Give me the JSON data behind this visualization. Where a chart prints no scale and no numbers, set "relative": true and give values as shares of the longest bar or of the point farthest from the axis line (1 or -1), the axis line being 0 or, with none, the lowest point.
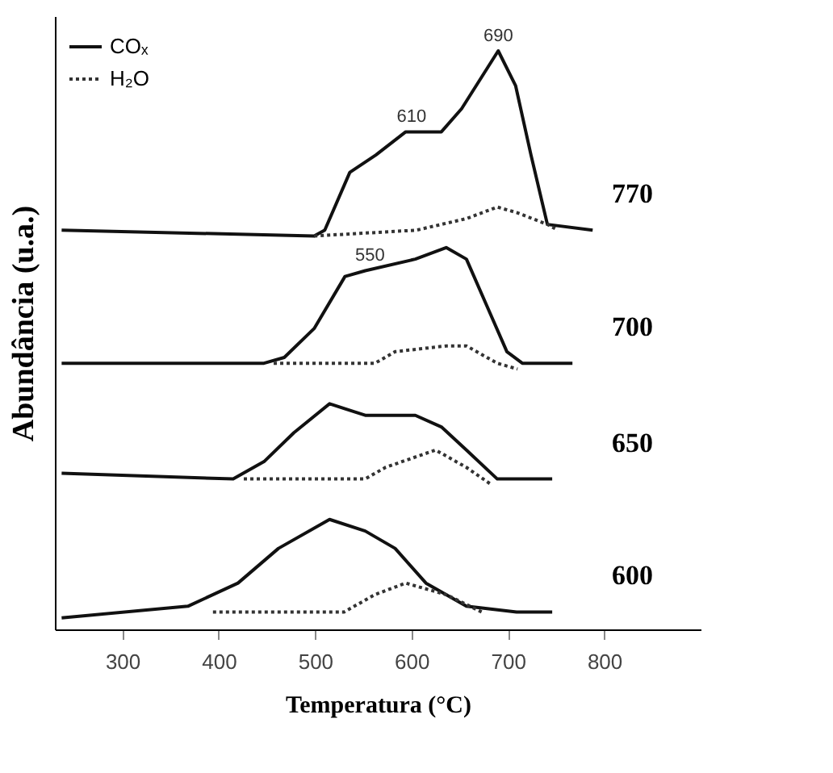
{
  "chart_data": {
    "type": "line",
    "relative": true,
    "xlim": [
      230,
      900
    ],
    "xticks": [
      300,
      400,
      500,
      600,
      700,
      800
    ],
    "tick_labels": "x",
    "legend": "top left",
    "xlabel": "Temperatura (°C)",
    "ylabel": "Abundância (u.a.)",
    "series": [
      {
        "name": "COₓ",
        "color": "#111111",
        "line_style": "solid",
        "x": [
          237,
          499,
          510,
          536,
          563,
          594,
          631,
          652,
          690,
          708,
          724,
          741,
          788
        ],
        "values": [
          0.69,
          0.68,
          0.69,
          0.79,
          0.82,
          0.86,
          0.86,
          0.9,
          1,
          0.94,
          0.82,
          0.7,
          0.69
        ]
      },
      {
        "name": "H₂O",
        "color": "#333333",
        "line_style": "dotted",
        "x": [
          499,
          605,
          657,
          689,
          710,
          741,
          752
        ],
        "values": [
          0.68,
          0.69,
          0.71,
          0.73,
          0.72,
          0.7,
          0.69
        ]
      },
      {
        "color": "#111111",
        "line_style": "solid",
        "x": [
          237,
          447,
          468,
          499,
          531,
          552,
          604,
          636,
          657,
          678,
          699,
          715,
          767
        ],
        "values": [
          0.46,
          0.46,
          0.47,
          0.52,
          0.61,
          0.62,
          0.64,
          0.66,
          0.64,
          0.56,
          0.48,
          0.46,
          0.46
        ]
      },
      {
        "color": "#333333",
        "line_style": "dotted",
        "x": [
          457,
          562,
          583,
          636,
          657,
          689,
          710
        ],
        "values": [
          0.46,
          0.46,
          0.48,
          0.49,
          0.49,
          0.46,
          0.45
        ]
      },
      {
        "color": "#111111",
        "line_style": "solid",
        "x": [
          237,
          415,
          447,
          478,
          515,
          552,
          604,
          631,
          657,
          689,
          746
        ],
        "values": [
          0.27,
          0.26,
          0.29,
          0.34,
          0.39,
          0.37,
          0.37,
          0.35,
          0.31,
          0.26,
          0.26
        ]
      },
      {
        "color": "#333333",
        "line_style": "dotted",
        "x": [
          426,
          552,
          573,
          625,
          657,
          683
        ],
        "values": [
          0.26,
          0.26,
          0.28,
          0.31,
          0.28,
          0.25
        ]
      },
      {
        "color": "#111111",
        "line_style": "solid",
        "x": [
          237,
          368,
          420,
          462,
          515,
          552,
          583,
          615,
          657,
          709,
          746
        ],
        "values": [
          0.02,
          0.04,
          0.08,
          0.14,
          0.19,
          0.17,
          0.14,
          0.08,
          0.04,
          0.03,
          0.03
        ]
      },
      {
        "color": "#333333",
        "line_style": "dotted",
        "x": [
          394,
          488,
          530,
          562,
          594,
          636,
          673
        ],
        "values": [
          0.03,
          0.03,
          0.03,
          0.06,
          0.08,
          0.06,
          0.03
        ]
      }
    ],
    "annotations": [
      {
        "text": "690",
        "x": 690,
        "y": 1
      },
      {
        "text": "610",
        "x": 600,
        "y": 0.86
      },
      {
        "text": "550",
        "x": 557,
        "y": 0.62
      },
      "770",
      "700",
      "650",
      "600"
    ]
  }
}
